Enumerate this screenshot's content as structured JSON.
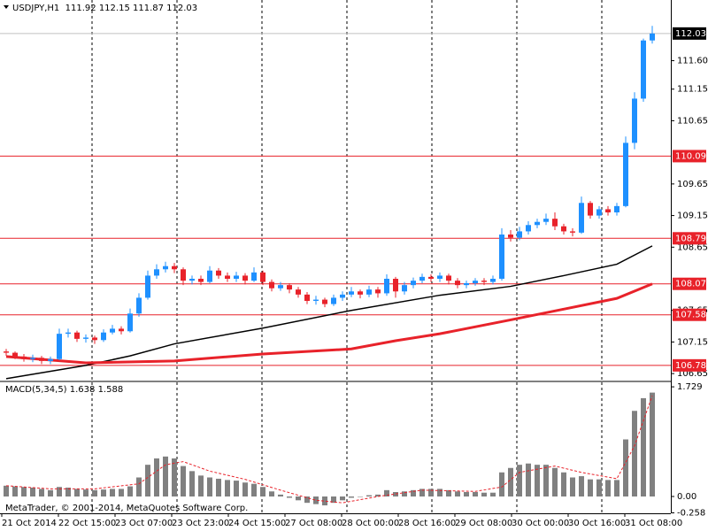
{
  "chart_data": [
    {
      "type": "candlestick",
      "title": "USDJPY,H1  111.92 112.15 111.87 112.03",
      "up_color": "#1e90ff",
      "down_color": "#e8222a",
      "ylim": [
        106.54,
        112.56
      ],
      "yticks": [
        {
          "value": 111.6,
          "label": "111.60"
        },
        111.15,
        110.65,
        109.65,
        109.15,
        108.65,
        107.65,
        107.15,
        106.65
      ],
      "x_labels": [
        "21 Oct 2014",
        "22 Oct 15:00",
        "23 Oct 07:00",
        "23 Oct 23:00",
        "24 Oct 15:00",
        "27 Oct 08:00",
        "28 Oct 00:00",
        "28 Oct 16:00",
        "29 Oct 08:00",
        "30 Oct 00:00",
        "30 Oct 16:00",
        "31 Oct 08:00"
      ],
      "current_price": 112.03,
      "levels": [
        110.09,
        108.79,
        108.07,
        107.58,
        106.78
      ],
      "level_color": "#e8222a",
      "ohlc": [
        [
          107.0,
          107.04,
          106.93,
          106.98
        ],
        [
          106.98,
          107.0,
          106.88,
          106.92
        ],
        [
          106.92,
          106.96,
          106.84,
          106.88
        ],
        [
          106.88,
          106.95,
          106.83,
          106.9
        ],
        [
          106.9,
          106.93,
          106.8,
          106.85
        ],
        [
          106.85,
          106.92,
          106.8,
          106.88
        ],
        [
          106.88,
          107.36,
          106.86,
          107.28
        ],
        [
          107.28,
          107.36,
          107.22,
          107.3
        ],
        [
          107.3,
          107.33,
          107.15,
          107.2
        ],
        [
          107.2,
          107.27,
          107.14,
          107.22
        ],
        [
          107.22,
          107.25,
          107.12,
          107.18
        ],
        [
          107.18,
          107.35,
          107.15,
          107.3
        ],
        [
          107.3,
          107.42,
          107.27,
          107.36
        ],
        [
          107.36,
          107.4,
          107.27,
          107.32
        ],
        [
          107.32,
          107.68,
          107.3,
          107.6
        ],
        [
          107.6,
          107.92,
          107.55,
          107.85
        ],
        [
          107.85,
          108.28,
          107.82,
          108.2
        ],
        [
          108.2,
          108.38,
          108.15,
          108.3
        ],
        [
          108.3,
          108.42,
          108.25,
          108.35
        ],
        [
          108.35,
          108.4,
          108.24,
          108.3
        ],
        [
          108.3,
          108.33,
          108.05,
          108.12
        ],
        [
          108.12,
          108.2,
          108.06,
          108.15
        ],
        [
          108.15,
          108.2,
          108.05,
          108.1
        ],
        [
          108.1,
          108.35,
          108.08,
          108.28
        ],
        [
          108.28,
          108.32,
          108.15,
          108.2
        ],
        [
          108.2,
          108.25,
          108.1,
          108.15
        ],
        [
          108.15,
          108.26,
          108.1,
          108.2
        ],
        [
          108.2,
          108.24,
          108.06,
          108.12
        ],
        [
          108.12,
          108.33,
          108.1,
          108.25
        ],
        [
          108.25,
          108.28,
          108.05,
          108.1
        ],
        [
          108.1,
          108.14,
          107.95,
          108.0
        ],
        [
          108.0,
          108.1,
          107.96,
          108.05
        ],
        [
          108.05,
          108.08,
          107.92,
          107.98
        ],
        [
          107.98,
          108.02,
          107.85,
          107.9
        ],
        [
          107.9,
          107.94,
          107.75,
          107.8
        ],
        [
          107.8,
          107.88,
          107.74,
          107.82
        ],
        [
          107.82,
          107.85,
          107.7,
          107.75
        ],
        [
          107.75,
          107.9,
          107.72,
          107.85
        ],
        [
          107.85,
          107.95,
          107.8,
          107.9
        ],
        [
          107.9,
          108.02,
          107.86,
          107.95
        ],
        [
          107.95,
          107.98,
          107.84,
          107.9
        ],
        [
          107.9,
          108.04,
          107.86,
          107.98
        ],
        [
          107.98,
          108.02,
          107.85,
          107.92
        ],
        [
          107.92,
          108.22,
          107.88,
          108.15
        ],
        [
          108.15,
          108.18,
          107.85,
          107.95
        ],
        [
          107.95,
          108.1,
          107.9,
          108.05
        ],
        [
          108.05,
          108.17,
          108.0,
          108.12
        ],
        [
          108.12,
          108.23,
          108.08,
          108.18
        ],
        [
          108.18,
          108.22,
          108.1,
          108.15
        ],
        [
          108.15,
          108.25,
          108.1,
          108.2
        ],
        [
          108.2,
          108.23,
          108.06,
          108.12
        ],
        [
          108.12,
          108.16,
          108.0,
          108.05
        ],
        [
          108.05,
          108.12,
          108.0,
          108.08
        ],
        [
          108.08,
          108.16,
          108.04,
          108.12
        ],
        [
          108.12,
          108.16,
          108.05,
          108.1
        ],
        [
          108.1,
          108.2,
          108.06,
          108.15
        ],
        [
          108.15,
          108.95,
          108.12,
          108.85
        ],
        [
          108.85,
          108.92,
          108.74,
          108.8
        ],
        [
          108.8,
          108.97,
          108.76,
          108.9
        ],
        [
          108.9,
          109.06,
          108.85,
          109.0
        ],
        [
          109.0,
          109.1,
          108.95,
          109.05
        ],
        [
          109.05,
          109.18,
          109.0,
          109.1
        ],
        [
          109.1,
          109.2,
          108.92,
          108.98
        ],
        [
          108.98,
          109.02,
          108.85,
          108.9
        ],
        [
          108.9,
          108.95,
          108.82,
          108.88
        ],
        [
          108.88,
          109.45,
          108.86,
          109.35
        ],
        [
          109.35,
          109.38,
          109.1,
          109.15
        ],
        [
          109.15,
          109.3,
          109.1,
          109.25
        ],
        [
          109.25,
          109.3,
          109.15,
          109.2
        ],
        [
          109.2,
          109.35,
          109.15,
          109.3
        ],
        [
          109.3,
          110.4,
          109.28,
          110.3
        ],
        [
          110.3,
          111.1,
          110.2,
          111.0
        ],
        [
          111.0,
          111.95,
          110.95,
          111.92
        ],
        [
          111.92,
          112.15,
          111.87,
          112.03
        ]
      ],
      "lines": [
        {
          "color": "#000000",
          "width": 1.5,
          "x": [
            0,
            9,
            14,
            19,
            29,
            39,
            49,
            57,
            63,
            69,
            73
          ],
          "values": [
            106.57,
            106.78,
            106.93,
            107.12,
            107.37,
            107.65,
            107.89,
            108.03,
            108.2,
            108.38,
            108.67
          ]
        },
        {
          "color": "#e8222a",
          "width": 3,
          "x": [
            0,
            9,
            19,
            29,
            39,
            44,
            49,
            57,
            63,
            69,
            73
          ],
          "values": [
            106.92,
            106.82,
            106.85,
            106.96,
            107.04,
            107.17,
            107.28,
            107.5,
            107.67,
            107.84,
            108.07
          ]
        }
      ]
    },
    {
      "type": "macd",
      "title": "MACD(5,34,5) 1.638 1.588",
      "note": "MetaTrader, © 2001-2014, MetaQuotes Software Corp.",
      "ylim": [
        -0.265,
        1.8
      ],
      "yticks": [
        1.729,
        {
          "value": 0,
          "label": "0.00"
        },
        -0.258
      ],
      "bar_color": "#808080",
      "signal_color": "#e8222a",
      "values": [
        0.17,
        0.16,
        0.15,
        0.14,
        0.12,
        0.1,
        0.15,
        0.14,
        0.12,
        0.11,
        0.1,
        0.11,
        0.12,
        0.12,
        0.16,
        0.3,
        0.5,
        0.6,
        0.63,
        0.6,
        0.48,
        0.4,
        0.33,
        0.3,
        0.28,
        0.26,
        0.25,
        0.22,
        0.2,
        0.15,
        0.08,
        0.03,
        -0.02,
        -0.06,
        -0.1,
        -0.12,
        -0.14,
        -0.1,
        -0.06,
        -0.02,
        0.0,
        0.02,
        0.03,
        0.1,
        0.07,
        0.08,
        0.1,
        0.12,
        0.12,
        0.12,
        0.1,
        0.08,
        0.07,
        0.07,
        0.06,
        0.06,
        0.38,
        0.45,
        0.5,
        0.52,
        0.5,
        0.5,
        0.45,
        0.38,
        0.3,
        0.32,
        0.27,
        0.27,
        0.26,
        0.26,
        0.9,
        1.35,
        1.55,
        1.638
      ],
      "signal": {
        "x": [
          0,
          5,
          10,
          15,
          18,
          20,
          23,
          27,
          31,
          35,
          38,
          42,
          47,
          53,
          56,
          58,
          62,
          65,
          69,
          71,
          73
        ],
        "values": [
          0.17,
          0.12,
          0.12,
          0.2,
          0.5,
          0.55,
          0.4,
          0.27,
          0.1,
          -0.06,
          -0.1,
          0.0,
          0.1,
          0.08,
          0.15,
          0.38,
          0.48,
          0.38,
          0.28,
          0.8,
          1.588
        ]
      }
    }
  ]
}
